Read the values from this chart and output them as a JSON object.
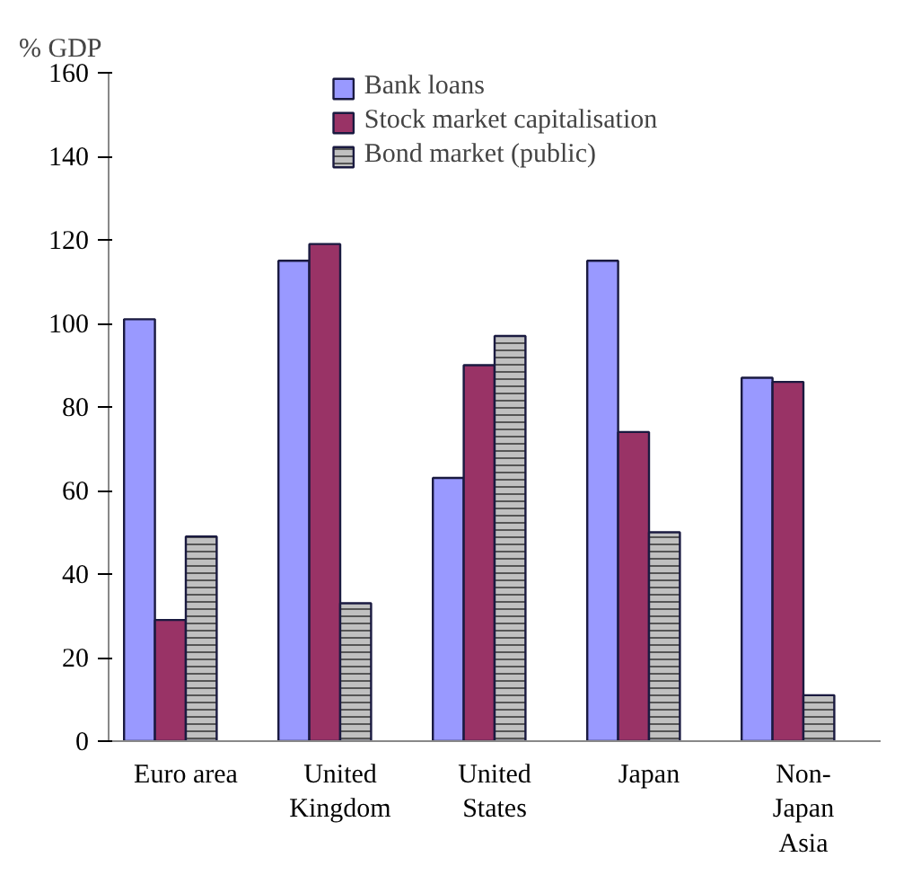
{
  "chart_data": {
    "type": "bar",
    "ylabel": "% GDP",
    "categories": [
      "Euro area",
      "United\nKingdom",
      "United\nStates",
      "Japan",
      "Non-\nJapan\nAsia"
    ],
    "series": [
      {
        "name": "Bank loans",
        "color": "#9999ff",
        "values": [
          101,
          115,
          63,
          115,
          87
        ]
      },
      {
        "name": "Stock market capitalisation",
        "color": "#993366",
        "values": [
          29,
          119,
          90,
          74,
          86
        ]
      },
      {
        "name": "Bond market (public)",
        "color": "#c0c0c0",
        "values": [
          49,
          33,
          97,
          50,
          11
        ]
      }
    ],
    "ylim": [
      0,
      160
    ],
    "yticks": [
      0,
      20,
      40,
      60,
      80,
      100,
      120,
      140,
      160
    ],
    "grid": false,
    "legend": "top"
  }
}
